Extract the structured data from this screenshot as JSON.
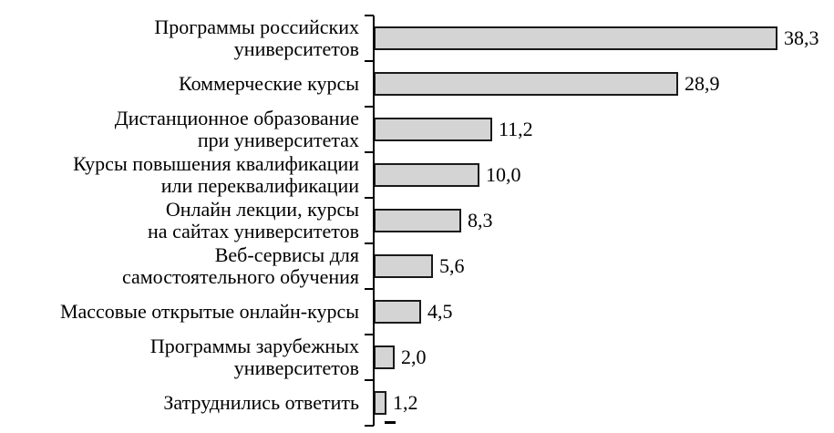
{
  "chart_data": {
    "type": "bar",
    "orientation": "horizontal",
    "title": "",
    "xlabel": "",
    "ylabel": "",
    "grid": false,
    "legend_position": "none",
    "xlim": [
      0,
      40
    ],
    "categories": [
      "Программы российских\nуниверситетов",
      "Коммерческие курсы",
      "Дистанционное образование\nпри университетах",
      "Курсы повышения квалификации\nили переквалификации",
      "Онлайн лекции, курсы\nна сайтах университетов",
      "Веб-сервисы для\nсамостоятельного обучения",
      "Массовые открытые онлайн-курсы",
      "Программы зарубежных\nуниверситетов",
      "Затруднились ответить"
    ],
    "values": [
      38.3,
      28.9,
      11.2,
      10.0,
      8.3,
      5.6,
      4.5,
      2.0,
      1.2
    ],
    "value_labels": [
      "38,3",
      "28,9",
      "11,2",
      "10,0",
      "8,3",
      "5,6",
      "4,5",
      "2,0",
      "1,2"
    ],
    "bar_fill_color": "#d4d4d4",
    "bar_border_color": "#1a1a1a",
    "axis_color": "#000000"
  }
}
